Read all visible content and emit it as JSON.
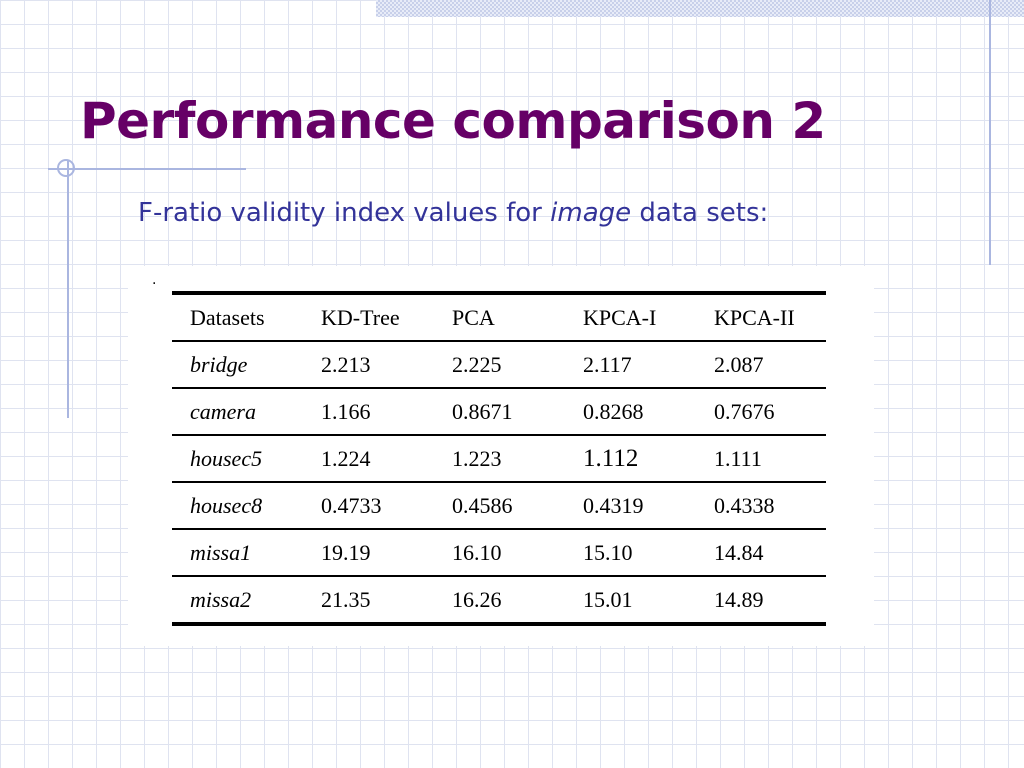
{
  "slide": {
    "title": "Performance comparison 2",
    "subtitle_pre": "F-ratio validity index values for ",
    "subtitle_em": "image",
    "subtitle_post": " data sets:",
    "dot": "."
  },
  "colors": {
    "title": "#660066",
    "subtitle": "#333399",
    "accent_lines": "#aab6e0"
  },
  "table": {
    "headers": [
      "Datasets",
      "KD-Tree",
      "PCA",
      "KPCA-I",
      "KPCA-II"
    ],
    "rows": [
      [
        "bridge",
        "2.213",
        "2.225",
        "2.117",
        "2.087"
      ],
      [
        "camera",
        "1.166",
        "0.8671",
        "0.8268",
        "0.7676"
      ],
      [
        "housec5",
        "1.224",
        "1.223",
        "1.112",
        "1.111"
      ],
      [
        "housec8",
        "0.4733",
        "0.4586",
        "0.4319",
        "0.4338"
      ],
      [
        "missa1",
        "19.19",
        "16.10",
        "15.10",
        "14.84"
      ],
      [
        "missa2",
        "21.35",
        "16.26",
        "15.01",
        "14.89"
      ]
    ]
  }
}
